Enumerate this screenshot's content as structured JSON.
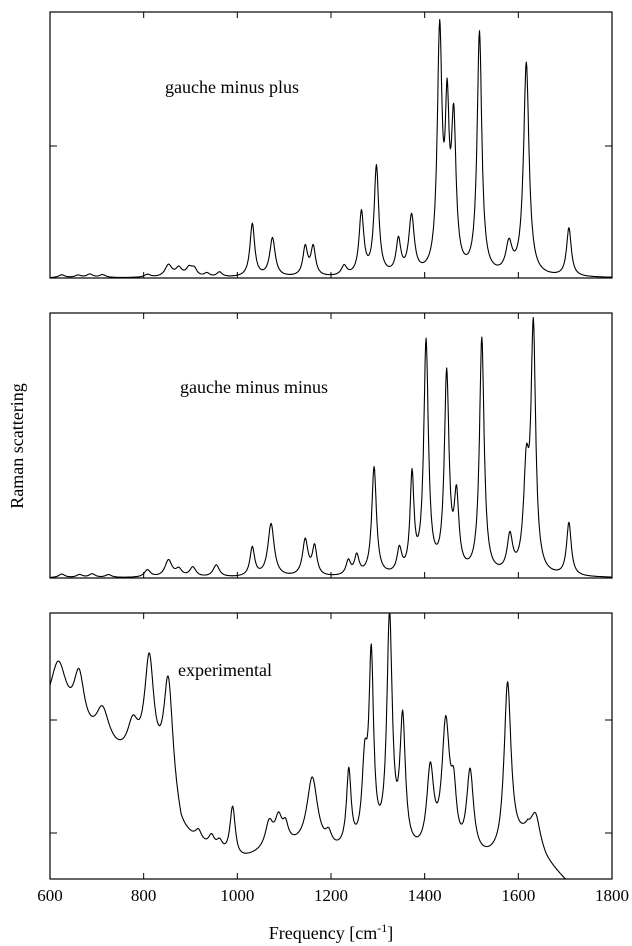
{
  "chart_data": {
    "type": "line",
    "xlabel_main": "Frequency [cm",
    "xlabel_sup": "-1",
    "xlabel_end": "]",
    "ylabel": "Raman scattering",
    "xlim": [
      600,
      1800
    ],
    "xticks": [
      "600",
      "800",
      "1000",
      "1200",
      "1400",
      "1600",
      "1800"
    ],
    "panels": [
      {
        "label": "gauche minus plus",
        "ylim": [
          0,
          1.1
        ],
        "peaks": [
          [
            625,
            0.012,
            8
          ],
          [
            660,
            0.01,
            8
          ],
          [
            685,
            0.014,
            8
          ],
          [
            712,
            0.012,
            8
          ],
          [
            808,
            0.012,
            8
          ],
          [
            853,
            0.05,
            9
          ],
          [
            875,
            0.035,
            8
          ],
          [
            897,
            0.035,
            8
          ],
          [
            908,
            0.03,
            7
          ],
          [
            935,
            0.015,
            7
          ],
          [
            962,
            0.02,
            7
          ],
          [
            1032,
            0.22,
            6
          ],
          [
            1075,
            0.16,
            7
          ],
          [
            1145,
            0.12,
            6
          ],
          [
            1162,
            0.12,
            6
          ],
          [
            1228,
            0.04,
            7
          ],
          [
            1265,
            0.26,
            6
          ],
          [
            1297,
            0.45,
            6
          ],
          [
            1344,
            0.14,
            6
          ],
          [
            1372,
            0.24,
            7
          ],
          [
            1432,
            0.98,
            6
          ],
          [
            1448,
            0.6,
            5
          ],
          [
            1462,
            0.6,
            6
          ],
          [
            1517,
            1.0,
            6
          ],
          [
            1580,
            0.12,
            8
          ],
          [
            1617,
            0.88,
            7
          ],
          [
            1708,
            0.2,
            6
          ]
        ]
      },
      {
        "label": "gauche minus minus",
        "ylim": [
          0,
          1.1
        ],
        "peaks": [
          [
            625,
            0.015,
            8
          ],
          [
            663,
            0.012,
            8
          ],
          [
            690,
            0.015,
            8
          ],
          [
            725,
            0.012,
            8
          ],
          [
            808,
            0.03,
            8
          ],
          [
            853,
            0.07,
            9
          ],
          [
            875,
            0.03,
            8
          ],
          [
            905,
            0.04,
            8
          ],
          [
            955,
            0.05,
            8
          ],
          [
            1032,
            0.12,
            6
          ],
          [
            1072,
            0.22,
            8
          ],
          [
            1145,
            0.15,
            7
          ],
          [
            1165,
            0.12,
            6
          ],
          [
            1237,
            0.06,
            6
          ],
          [
            1255,
            0.08,
            6
          ],
          [
            1292,
            0.45,
            6
          ],
          [
            1346,
            0.1,
            6
          ],
          [
            1373,
            0.4,
            5
          ],
          [
            1403,
            0.96,
            6
          ],
          [
            1447,
            0.82,
            6
          ],
          [
            1468,
            0.3,
            6
          ],
          [
            1522,
            0.98,
            6
          ],
          [
            1582,
            0.15,
            7
          ],
          [
            1617,
            0.4,
            7
          ],
          [
            1632,
            1.0,
            6
          ],
          [
            1708,
            0.22,
            6
          ]
        ]
      },
      {
        "label": "experimental",
        "ylim": [
          -0.04,
          1.0
        ],
        "baseline": [
          [
            600,
            0.55
          ],
          [
            700,
            0.45
          ],
          [
            800,
            0.38
          ],
          [
            850,
            0.3
          ],
          [
            880,
            0.12
          ],
          [
            950,
            0.05
          ],
          [
            1000,
            0.02
          ],
          [
            1100,
            0.08
          ],
          [
            1200,
            0.05
          ],
          [
            1300,
            0.05
          ],
          [
            1400,
            0.03
          ],
          [
            1500,
            0.02
          ],
          [
            1560,
            0.03
          ],
          [
            1620,
            0.12
          ],
          [
            1660,
            0.02
          ],
          [
            1700,
            -0.05
          ],
          [
            1800,
            -0.08
          ]
        ],
        "peaks": [
          [
            618,
            0.25,
            22
          ],
          [
            662,
            0.22,
            14
          ],
          [
            712,
            0.15,
            18
          ],
          [
            777,
            0.13,
            14
          ],
          [
            812,
            0.42,
            12
          ],
          [
            853,
            0.42,
            12
          ],
          [
            917,
            0.04,
            8
          ],
          [
            945,
            0.05,
            8
          ],
          [
            962,
            0.04,
            8
          ],
          [
            990,
            0.2,
            7
          ],
          [
            1068,
            0.1,
            10
          ],
          [
            1088,
            0.1,
            9
          ],
          [
            1103,
            0.06,
            7
          ],
          [
            1160,
            0.28,
            14
          ],
          [
            1195,
            0.05,
            8
          ],
          [
            1238,
            0.3,
            6
          ],
          [
            1272,
            0.3,
            7
          ],
          [
            1286,
            0.72,
            6
          ],
          [
            1325,
            0.9,
            7
          ],
          [
            1353,
            0.5,
            7
          ],
          [
            1412,
            0.32,
            9
          ],
          [
            1445,
            0.5,
            10
          ],
          [
            1462,
            0.2,
            7
          ],
          [
            1497,
            0.33,
            9
          ],
          [
            1577,
            0.66,
            9
          ],
          [
            1637,
            0.12,
            12
          ]
        ]
      }
    ]
  }
}
